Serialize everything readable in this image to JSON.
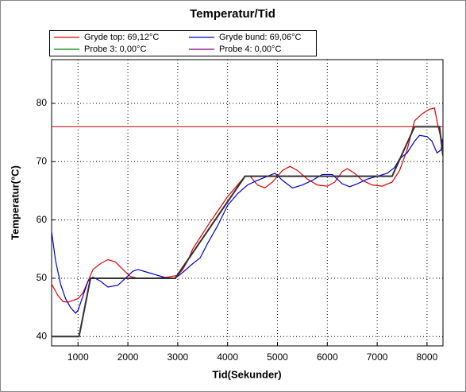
{
  "chart_data": {
    "type": "line",
    "title": "Temperatur/Tid",
    "xlabel": "Tid(Sekunder)",
    "ylabel": "Temperatur(°C)",
    "xlim": [
      470,
      8320
    ],
    "ylim": [
      38.4,
      87.5
    ],
    "xticks": [
      1000,
      2000,
      3000,
      4000,
      5000,
      6000,
      7000,
      8000
    ],
    "yticks": [
      40,
      50,
      60,
      70,
      80
    ],
    "grid": true,
    "hlines": [
      {
        "value": 76,
        "color": "#e00000"
      }
    ],
    "series": [
      {
        "name": "Gryde top: 69,12°C",
        "color": "#e00000",
        "x": [
          470,
          600,
          700,
          800,
          900,
          1000,
          1100,
          1200,
          1300,
          1450,
          1600,
          1750,
          1900,
          2050,
          2200,
          2500,
          2800,
          3000,
          3100,
          3200,
          3300,
          3450,
          3600,
          3800,
          4000,
          4200,
          4350,
          4450,
          4600,
          4750,
          4900,
          5100,
          5250,
          5400,
          5600,
          5800,
          6000,
          6150,
          6300,
          6400,
          6550,
          6700,
          6900,
          7100,
          7300,
          7450,
          7600,
          7750,
          7900,
          8050,
          8150,
          8200,
          8250,
          8320
        ],
        "values": [
          49,
          47,
          46,
          45.9,
          46.2,
          46.5,
          47.5,
          49.5,
          51.5,
          52.5,
          53.2,
          52.8,
          51.5,
          50.3,
          50,
          50,
          50.2,
          50.5,
          51.5,
          53,
          55,
          57,
          59,
          61.5,
          64,
          66,
          67.5,
          67.5,
          66,
          65.5,
          66.5,
          68.5,
          69.2,
          68.5,
          67,
          66,
          65.8,
          66.5,
          68.3,
          68.8,
          68,
          66.8,
          66,
          65.8,
          66.5,
          68.5,
          72,
          77,
          78.2,
          79,
          79.2,
          77,
          75,
          73
        ]
      },
      {
        "name": "Gryde bund: 69,06°C",
        "color": "#0000d0",
        "x": [
          470,
          550,
          650,
          750,
          850,
          950,
          1000,
          1100,
          1200,
          1300,
          1450,
          1600,
          1800,
          1950,
          2100,
          2200,
          2400,
          2600,
          2800,
          2950,
          3100,
          3300,
          3450,
          3600,
          3800,
          4000,
          4200,
          4400,
          4600,
          4800,
          4950,
          5100,
          5300,
          5500,
          5700,
          5900,
          6100,
          6300,
          6450,
          6600,
          6800,
          7000,
          7200,
          7350,
          7450,
          7600,
          7750,
          7850,
          8000,
          8100,
          8200,
          8280,
          8320
        ],
        "values": [
          58,
          53,
          49,
          46.5,
          45,
          44,
          44.5,
          47,
          49.5,
          50.2,
          49.5,
          48.5,
          48.8,
          50,
          51.2,
          51.5,
          51,
          50.5,
          50,
          50,
          51,
          52.5,
          53.5,
          56,
          59,
          62.5,
          64.5,
          66,
          66.8,
          67.5,
          68,
          66.8,
          65.5,
          66,
          66.8,
          67.8,
          67.8,
          66.2,
          65.7,
          66.2,
          67,
          67.5,
          68,
          69,
          70.5,
          71.5,
          73.5,
          74.5,
          74.3,
          73.5,
          71.5,
          72,
          74
        ]
      },
      {
        "name": "Probe 3: 0,00°C",
        "color": "#008000",
        "x": [],
        "values": []
      },
      {
        "name": "Probe 4: 0,00°C",
        "color": "#800080",
        "x": [],
        "values": []
      },
      {
        "color": "#303030",
        "x": [
          470,
          1020,
          1250,
          2950,
          4350,
          7300,
          7750,
          8250,
          8320
        ],
        "values": [
          40,
          40,
          50,
          50,
          67.5,
          67.5,
          76,
          76,
          71
        ]
      }
    ]
  }
}
